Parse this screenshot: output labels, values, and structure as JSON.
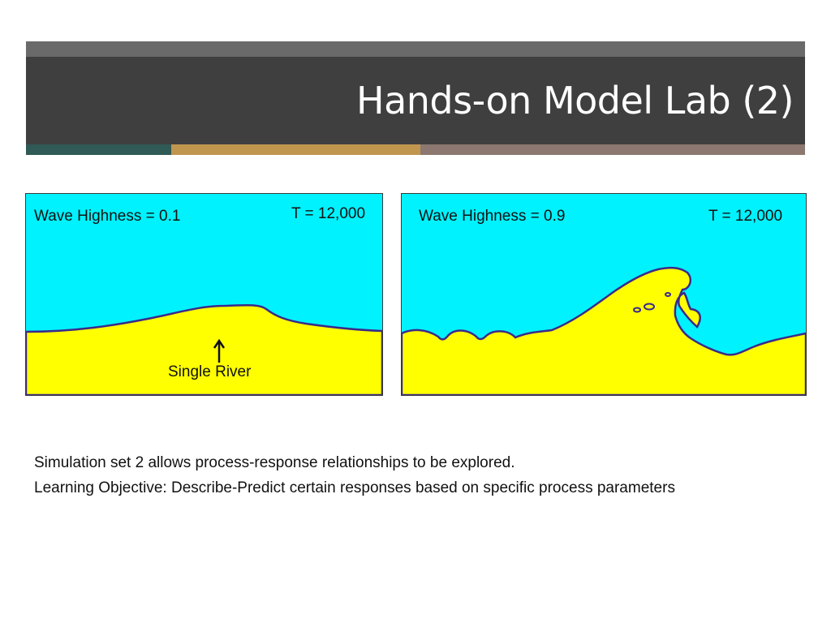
{
  "slide": {
    "title": "Hands-on Model Lab (2)",
    "colors": {
      "header_dark": "#3f3f3f",
      "header_top": "#6a6a6a",
      "strip_teal": "#2f5a55",
      "strip_gold": "#c0964f",
      "strip_mauve": "#8c7870",
      "water": "#00f2ff",
      "land": "#ffff00",
      "shoreline": "#3a2a8a"
    }
  },
  "panels": [
    {
      "wave_label": "Wave Highness = 0.1",
      "time_label": "T = 12,000"
    },
    {
      "wave_label": "Wave Highness = 0.9",
      "time_label": "T = 12,000"
    }
  ],
  "annotation": {
    "river_label": "Single River",
    "arrow_icon": "up-arrow-icon"
  },
  "captions": [
    "Simulation set 2 allows process-response relationships to be explored.",
    "Learning Objective: Describe-Predict certain responses based on specific process parameters"
  ]
}
